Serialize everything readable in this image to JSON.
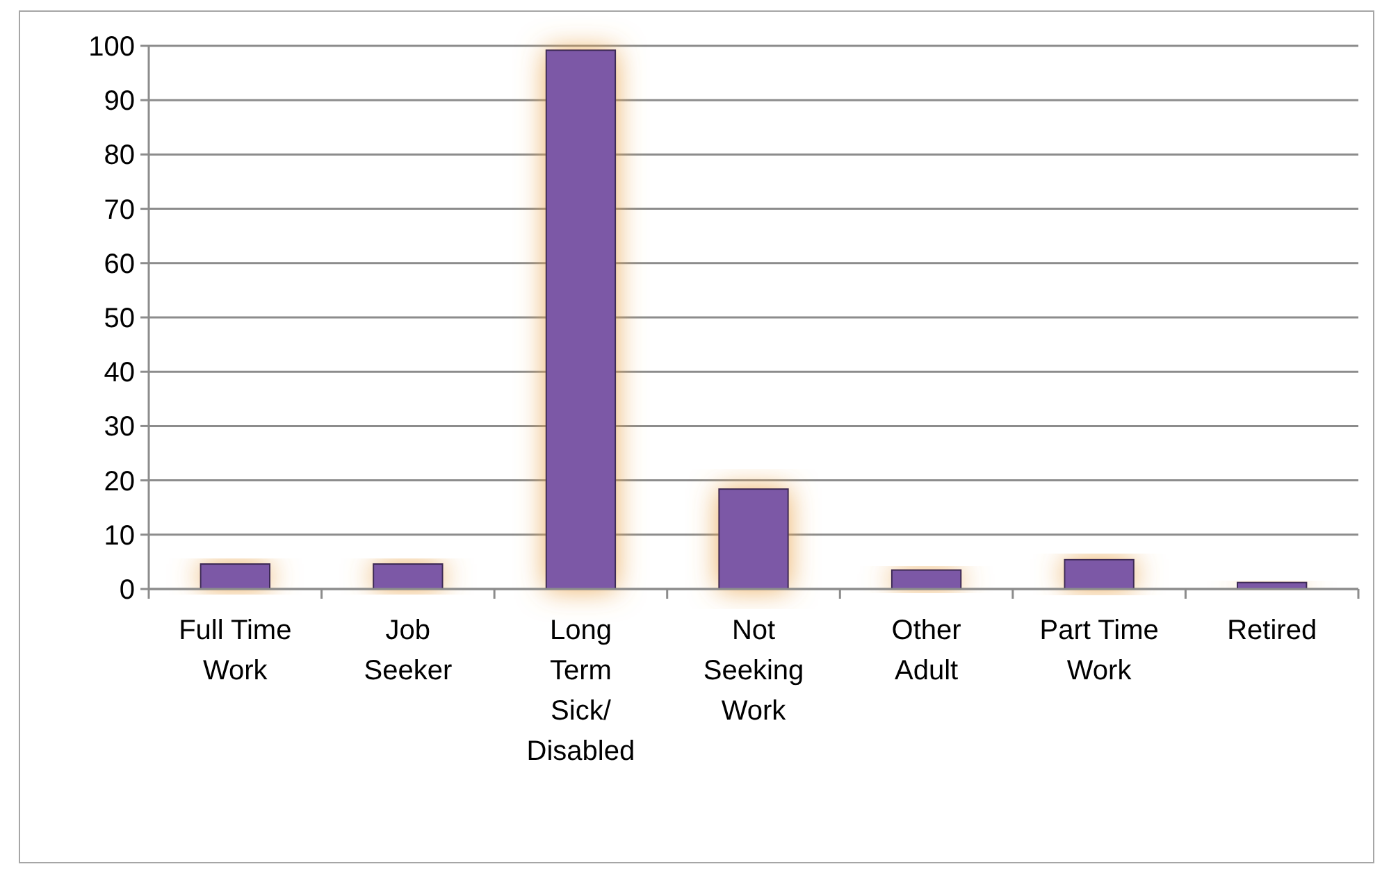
{
  "chart_data": {
    "type": "bar",
    "categories": [
      "Full Time\nWork",
      "Job\nSeeker",
      "Long\nTerm\nSick/\nDisabled",
      "Not\nSeeking\nWork",
      "Other\nAdult",
      "Part Time\nWork",
      "Retired"
    ],
    "values": [
      4.6,
      4.6,
      99.2,
      18.4,
      3.5,
      5.4,
      1.2
    ],
    "color": "#7b58a6",
    "ylim": [
      0,
      100
    ],
    "yticks": [
      0,
      10,
      20,
      30,
      40,
      50,
      60,
      70,
      80,
      90,
      100
    ],
    "grid": "y"
  }
}
